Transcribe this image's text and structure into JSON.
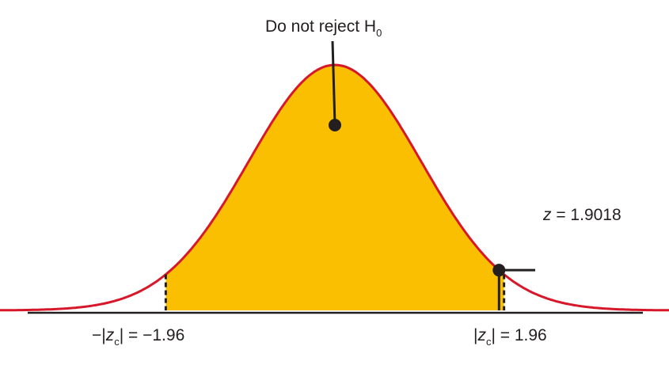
{
  "chart_data": {
    "type": "area",
    "distribution": "standard normal",
    "critical_value": 1.96,
    "test_statistic": 1.9018,
    "x_range": [
      -3.9,
      3.9
    ],
    "region_label": {
      "text": "Do not reject H",
      "subscript": "0"
    },
    "test_statistic_label": {
      "var": "z",
      "text": " = 1.9018"
    },
    "left_critical_label": {
      "prefix": "−|",
      "var": "z",
      "subscript": "c",
      "suffix": "| = −1.96"
    },
    "right_critical_label": {
      "prefix": "|",
      "var": "z",
      "subscript": "c",
      "suffix": "| = 1.96"
    }
  },
  "colors": {
    "fill": "#f9bf00",
    "curve": "#d7182a",
    "axis": "#231f20",
    "text": "#231f20"
  }
}
